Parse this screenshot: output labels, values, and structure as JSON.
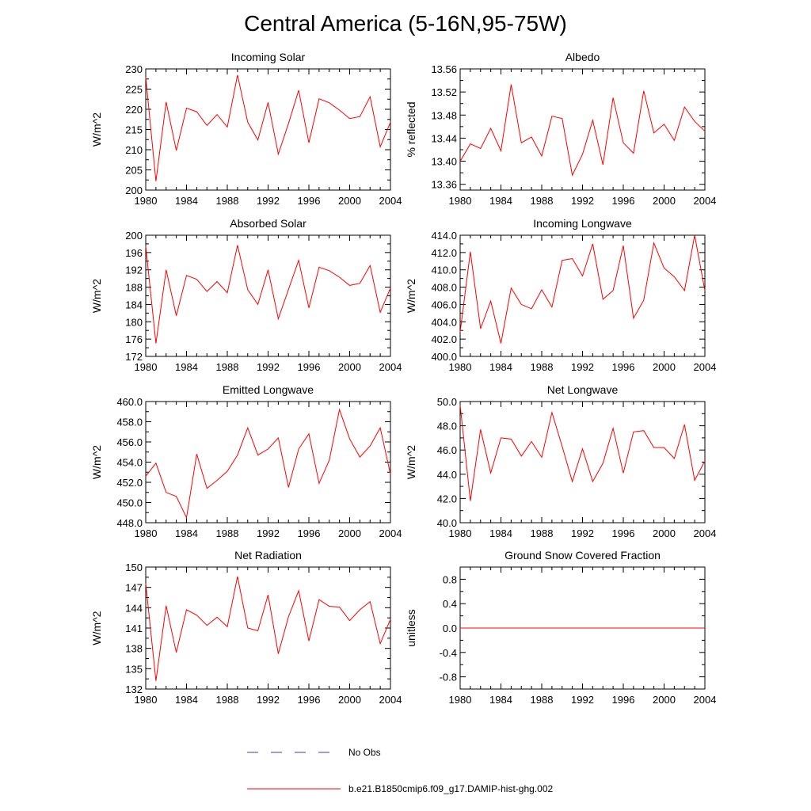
{
  "title": "Central America (5-16N,95-75W)",
  "colors": {
    "model": "#ff0000",
    "obs": "#3c3cc8",
    "axis": "#000000"
  },
  "legend": {
    "obs_label": "No Obs",
    "model_label": "b.e21.B1850cmip6.f09_g17.DAMIP-hist-ghg.002"
  },
  "chart_data": [
    {
      "type": "line",
      "title": "Incoming Solar",
      "ylabel": "W/m^2",
      "xlim": [
        1980,
        2004
      ],
      "ylim": [
        200,
        230
      ],
      "yticks": [
        200,
        205,
        210,
        215,
        220,
        225,
        230
      ],
      "ydec": 0,
      "xticks": [
        1980,
        1984,
        1988,
        1992,
        1996,
        2000,
        2004
      ],
      "series": [
        {
          "x": [
            1980,
            1981,
            1982,
            1983,
            1984,
            1985,
            1986,
            1987,
            1988,
            1989,
            1990,
            1991,
            1992,
            1993,
            1994,
            1995,
            1996,
            1997,
            1998,
            1999,
            2000,
            2001,
            2002,
            2003,
            2004
          ],
          "values": [
            228,
            202.2,
            221.8,
            209.8,
            220.3,
            219.4,
            216,
            218.7,
            215.6,
            228.5,
            216.8,
            212.4,
            221.7,
            208.9,
            216.5,
            224.7,
            211.7,
            222.6,
            221.6,
            219.8,
            217.7,
            218.2,
            223.1,
            210.7,
            216.8
          ]
        }
      ]
    },
    {
      "type": "line",
      "title": "Albedo",
      "ylabel": "% reflected",
      "xlim": [
        1980,
        2004
      ],
      "ylim": [
        13.35,
        13.56
      ],
      "yticks": [
        13.36,
        13.4,
        13.44,
        13.48,
        13.52,
        13.56
      ],
      "ydec": 2,
      "xticks": [
        1980,
        1984,
        1988,
        1992,
        1996,
        2000,
        2004
      ],
      "series": [
        {
          "x": [
            1980,
            1981,
            1982,
            1983,
            1984,
            1985,
            1986,
            1987,
            1988,
            1989,
            1990,
            1991,
            1992,
            1993,
            1994,
            1995,
            1996,
            1997,
            1998,
            1999,
            2000,
            2001,
            2002,
            2003,
            2004
          ],
          "values": [
            13.4,
            13.43,
            13.422,
            13.457,
            13.418,
            13.533,
            13.432,
            13.442,
            13.409,
            13.478,
            13.474,
            13.376,
            13.412,
            13.471,
            13.394,
            13.51,
            13.432,
            13.414,
            13.522,
            13.449,
            13.464,
            13.436,
            13.494,
            13.469,
            13.452
          ]
        }
      ]
    },
    {
      "type": "line",
      "title": "Absorbed Solar",
      "ylabel": "W/m^2",
      "xlim": [
        1980,
        2004
      ],
      "ylim": [
        172,
        200
      ],
      "yticks": [
        172,
        176,
        180,
        184,
        188,
        192,
        196,
        200
      ],
      "ydec": 0,
      "xticks": [
        1980,
        1984,
        1988,
        1992,
        1996,
        2000,
        2004
      ],
      "series": [
        {
          "x": [
            1980,
            1981,
            1982,
            1983,
            1984,
            1985,
            1986,
            1987,
            1988,
            1989,
            1990,
            1991,
            1992,
            1993,
            1994,
            1995,
            1996,
            1997,
            1998,
            1999,
            2000,
            2001,
            2002,
            2003,
            2004
          ],
          "values": [
            197.5,
            175,
            192,
            181.4,
            190.7,
            189.8,
            187,
            189.3,
            186.7,
            197.7,
            187.4,
            184,
            192,
            180.7,
            187.5,
            194.2,
            183.2,
            192.6,
            191.8,
            190.3,
            188.4,
            188.9,
            193,
            182.2,
            187.8
          ]
        }
      ]
    },
    {
      "type": "line",
      "title": "Incoming Longwave",
      "ylabel": "W/m^2",
      "xlim": [
        1980,
        2004
      ],
      "ylim": [
        400,
        414
      ],
      "yticks": [
        400.0,
        402.0,
        404.0,
        406.0,
        408.0,
        410.0,
        412.0,
        414.0
      ],
      "ydec": 1,
      "xticks": [
        1980,
        1984,
        1988,
        1992,
        1996,
        2000,
        2004
      ],
      "series": [
        {
          "x": [
            1980,
            1981,
            1982,
            1983,
            1984,
            1985,
            1986,
            1987,
            1988,
            1989,
            1990,
            1991,
            1992,
            1993,
            1994,
            1995,
            1996,
            1997,
            1998,
            1999,
            2000,
            2001,
            2002,
            2003,
            2004
          ],
          "values": [
            402.8,
            412.1,
            403.2,
            406.4,
            401.5,
            407.9,
            406,
            405.5,
            407.7,
            405.7,
            411.1,
            411.3,
            409.3,
            413,
            406.6,
            407.6,
            412.8,
            404.4,
            406.5,
            413.1,
            410.2,
            409.2,
            407.6,
            414,
            407.6
          ]
        }
      ]
    },
    {
      "type": "line",
      "title": "Emitted Longwave",
      "ylabel": "W/m^2",
      "xlim": [
        1980,
        2004
      ],
      "ylim": [
        448,
        460
      ],
      "yticks": [
        448.0,
        450.0,
        452.0,
        454.0,
        456.0,
        458.0,
        460.0
      ],
      "ydec": 1,
      "xticks": [
        1980,
        1984,
        1988,
        1992,
        1996,
        2000,
        2004
      ],
      "series": [
        {
          "x": [
            1980,
            1981,
            1982,
            1983,
            1984,
            1985,
            1986,
            1987,
            1988,
            1989,
            1990,
            1991,
            1992,
            1993,
            1994,
            1995,
            1996,
            1997,
            1998,
            1999,
            2000,
            2001,
            2002,
            2003,
            2004
          ],
          "values": [
            452.6,
            453.9,
            451,
            450.6,
            448.5,
            454.8,
            451.4,
            452.2,
            453.1,
            454.7,
            457.4,
            454.7,
            455.3,
            456.4,
            451.5,
            455.3,
            456.8,
            451.9,
            454.2,
            459.2,
            456.3,
            454.5,
            455.6,
            457.4,
            452.8
          ]
        }
      ]
    },
    {
      "type": "line",
      "title": "Net Longwave",
      "ylabel": "W/m^2",
      "xlim": [
        1980,
        2004
      ],
      "ylim": [
        40,
        50
      ],
      "yticks": [
        40.0,
        42.0,
        44.0,
        46.0,
        48.0,
        50.0
      ],
      "ydec": 1,
      "xticks": [
        1980,
        1984,
        1988,
        1992,
        1996,
        2000,
        2004
      ],
      "series": [
        {
          "x": [
            1980,
            1981,
            1982,
            1983,
            1984,
            1985,
            1986,
            1987,
            1988,
            1989,
            1990,
            1991,
            1992,
            1993,
            1994,
            1995,
            1996,
            1997,
            1998,
            1999,
            2000,
            2001,
            2002,
            2003,
            2004
          ],
          "values": [
            49.7,
            41.8,
            47.7,
            44.1,
            47,
            46.9,
            45.5,
            46.7,
            45.4,
            49.1,
            46.3,
            43.4,
            46.1,
            43.4,
            44.9,
            47.8,
            44.1,
            47.5,
            47.6,
            46.2,
            46.2,
            45.3,
            48.1,
            43.5,
            45.1
          ]
        }
      ]
    },
    {
      "type": "line",
      "title": "Net Radiation",
      "ylabel": "W/m^2",
      "xlim": [
        1980,
        2004
      ],
      "ylim": [
        132,
        150
      ],
      "yticks": [
        132,
        135,
        138,
        141,
        144,
        147,
        150
      ],
      "ydec": 0,
      "xticks": [
        1980,
        1984,
        1988,
        1992,
        1996,
        2000,
        2004
      ],
      "series": [
        {
          "x": [
            1980,
            1981,
            1982,
            1983,
            1984,
            1985,
            1986,
            1987,
            1988,
            1989,
            1990,
            1991,
            1992,
            1993,
            1994,
            1995,
            1996,
            1997,
            1998,
            1999,
            2000,
            2001,
            2002,
            2003,
            2004
          ],
          "values": [
            147.6,
            133.2,
            144.3,
            137.4,
            143.7,
            142.9,
            141.4,
            142.6,
            141.2,
            148.6,
            141,
            140.6,
            145.9,
            137.2,
            142.7,
            146.5,
            139.1,
            145.2,
            144.2,
            144.1,
            142.1,
            143.7,
            144.9,
            138.7,
            142.3
          ]
        }
      ]
    },
    {
      "type": "line",
      "title": "Ground Snow Covered Fraction",
      "ylabel": "unitless",
      "xlim": [
        1980,
        2004
      ],
      "ylim": [
        -1.0,
        1.0
      ],
      "yticks": [
        -0.8,
        -0.4,
        0.0,
        0.4,
        0.8
      ],
      "ydec": 1,
      "xticks": [
        1980,
        1984,
        1988,
        1992,
        1996,
        2000,
        2004
      ],
      "series": [
        {
          "x": [
            1980,
            2004
          ],
          "values": [
            0,
            0
          ]
        }
      ]
    }
  ]
}
